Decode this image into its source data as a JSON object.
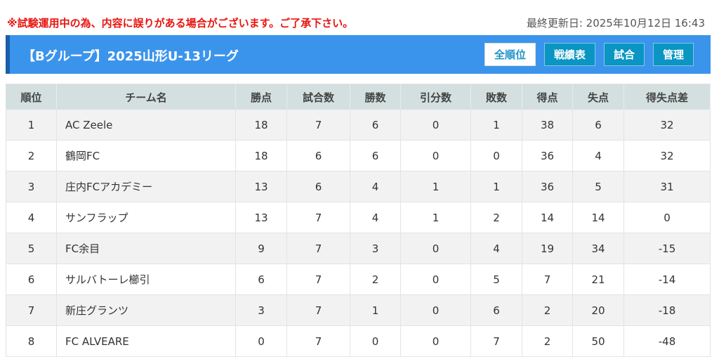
{
  "notice": "※試験運用中の為、内容に誤りがある場合がございます。ご了承下さい。",
  "updated": "最終更新日: 2025年10月12日 16:43",
  "header": {
    "title": "【Bグループ】2025山形U-13リーグ",
    "buttons": [
      "全順位",
      "戦績表",
      "試合",
      "管理"
    ]
  },
  "table": {
    "columns": [
      "順位",
      "チーム名",
      "勝点",
      "試合数",
      "勝数",
      "引分数",
      "敗数",
      "得点",
      "失点",
      "得失点差"
    ],
    "rows": [
      [
        "1",
        "AC Zeele",
        "18",
        "7",
        "6",
        "0",
        "1",
        "38",
        "6",
        "32"
      ],
      [
        "2",
        "鶴岡FC",
        "18",
        "6",
        "6",
        "0",
        "0",
        "36",
        "4",
        "32"
      ],
      [
        "3",
        "庄内FCアカデミー",
        "13",
        "6",
        "4",
        "1",
        "1",
        "36",
        "5",
        "31"
      ],
      [
        "4",
        "サンフラップ",
        "13",
        "7",
        "4",
        "1",
        "2",
        "14",
        "14",
        "0"
      ],
      [
        "5",
        "FC余目",
        "9",
        "7",
        "3",
        "0",
        "4",
        "19",
        "34",
        "-15"
      ],
      [
        "6",
        "サルバトーレ櫛引",
        "6",
        "7",
        "2",
        "0",
        "5",
        "7",
        "21",
        "-14"
      ],
      [
        "7",
        "新庄グランツ",
        "3",
        "7",
        "1",
        "0",
        "6",
        "2",
        "20",
        "-18"
      ],
      [
        "8",
        "FC ALVEARE",
        "0",
        "7",
        "0",
        "0",
        "7",
        "2",
        "50",
        "-48"
      ]
    ]
  }
}
